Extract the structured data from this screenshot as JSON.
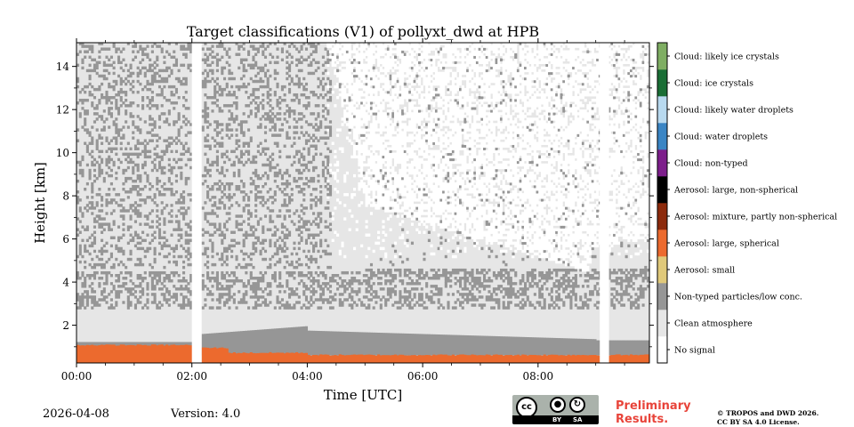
{
  "chart_data": {
    "type": "heatmap",
    "title": "Target classifications (V1) of pollyxt_dwd at HPB",
    "xlabel": "Time [UTC]",
    "ylabel": "Height [km]",
    "xlim": [
      0,
      9.93
    ],
    "ylim": [
      0.25,
      15.1
    ],
    "x_ticks": [
      {
        "value": 0,
        "label": "00:00"
      },
      {
        "value": 2,
        "label": "02:00"
      },
      {
        "value": 4,
        "label": "04:00"
      },
      {
        "value": 6,
        "label": "06:00"
      },
      {
        "value": 8,
        "label": "08:00"
      }
    ],
    "y_ticks": [
      {
        "value": 2,
        "label": "2"
      },
      {
        "value": 4,
        "label": "4"
      },
      {
        "value": 6,
        "label": "6"
      },
      {
        "value": 8,
        "label": "8"
      },
      {
        "value": 10,
        "label": "10"
      },
      {
        "value": 12,
        "label": "12"
      },
      {
        "value": 14,
        "label": "14"
      }
    ],
    "data_gaps_hours": [
      [
        2.0,
        2.17
      ],
      [
        9.07,
        9.23
      ]
    ],
    "regions": [
      {
        "class": "Clean atmosphere",
        "description": "background above the layers"
      },
      {
        "class": "Non-typed particles/low conc.",
        "height_range_km": [
          2.6,
          4.6
        ],
        "description": "layer with scattered signal up to 15 km before 04:30"
      },
      {
        "class": "Non-typed particles/low conc.",
        "height_range_km": [
          0.7,
          1.4
        ],
        "description": "band above the surface aerosol layer"
      },
      {
        "class": "Aerosol: large, spherical",
        "height_range_km": [
          0.4,
          1.1
        ],
        "description": "near-surface aerosol layer, highest before 02:00"
      }
    ],
    "colorbar": [
      {
        "label": "No signal",
        "color": "#ffffff"
      },
      {
        "label": "Clean atmosphere",
        "color": "#e6e6e6"
      },
      {
        "label": "Non-typed particles/low conc.",
        "color": "#969696"
      },
      {
        "label": "Aerosol: small",
        "color": "#e0c97a"
      },
      {
        "label": "Aerosol: large, spherical",
        "color": "#ec6a2e"
      },
      {
        "label": "Aerosol: mixture, partly non-spherical",
        "color": "#8c2a0c"
      },
      {
        "label": "Aerosol: large, non-spherical",
        "color": "#000000"
      },
      {
        "label": "Cloud: non-typed",
        "color": "#7d1e8b"
      },
      {
        "label": "Cloud: water droplets",
        "color": "#3a85c4"
      },
      {
        "label": "Cloud: likely water droplets",
        "color": "#b8d9ef"
      },
      {
        "label": "Cloud: ice crystals",
        "color": "#1a6e35"
      },
      {
        "label": "Cloud: likely ice crystals",
        "color": "#7fae63"
      }
    ]
  },
  "footer": {
    "date": "2026-04-08",
    "version": "Version: 4.0",
    "preliminary": "Preliminary Results.",
    "copyright_line1": "© TROPOS and DWD 2026.",
    "copyright_line2": "CC BY SA 4.0 License.",
    "license_badge": {
      "cc": "cc",
      "by": "BY",
      "sa": "SA"
    }
  }
}
